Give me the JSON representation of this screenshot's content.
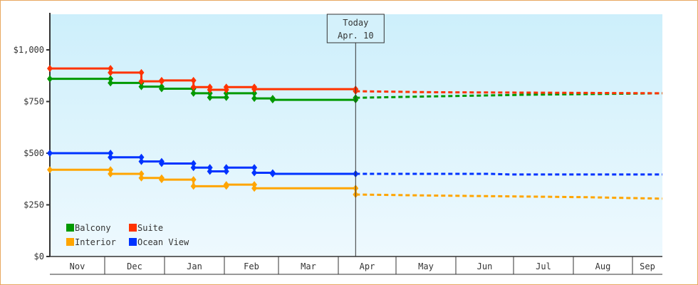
{
  "chart_data": {
    "type": "line",
    "title": "",
    "xlabel": "",
    "ylabel": "",
    "ylim": [
      0,
      1150
    ],
    "y_ticks": [
      {
        "value": 0,
        "label": "$0"
      },
      {
        "value": 250,
        "label": "$250"
      },
      {
        "value": 500,
        "label": "$500"
      },
      {
        "value": 750,
        "label": "$750"
      },
      {
        "value": 1000,
        "label": "$1,000"
      }
    ],
    "x_unit": "days since Nov 1",
    "months": [
      {
        "label": "Nov",
        "start": 0
      },
      {
        "label": "Dec",
        "start": 30
      },
      {
        "label": "Jan",
        "start": 61
      },
      {
        "label": "Feb",
        "start": 92
      },
      {
        "label": "Mar",
        "start": 120
      },
      {
        "label": "Apr",
        "start": 151
      },
      {
        "label": "May",
        "start": 181
      },
      {
        "label": "Jun",
        "start": 212
      },
      {
        "label": "Jul",
        "start": 242
      },
      {
        "label": "Aug",
        "start": 273
      },
      {
        "label": "Sep",
        "start": 304
      }
    ],
    "x_end": 319,
    "today": {
      "day": 160,
      "line1": "Today",
      "line2": "Apr. 10"
    },
    "legend": {
      "placement": "bottom-left"
    },
    "series": [
      {
        "name": "Balcony",
        "color": "#009900",
        "history": [
          [
            0,
            860
          ],
          [
            33,
            840
          ],
          [
            49,
            822
          ],
          [
            59.5,
            812
          ],
          [
            76,
            790
          ],
          [
            84.5,
            770
          ],
          [
            93,
            790
          ],
          [
            107.5,
            765
          ],
          [
            117,
            758
          ],
          [
            160,
            768
          ]
        ],
        "forecast": [
          [
            160,
            768
          ],
          [
            200,
            775
          ],
          [
            250,
            783
          ],
          [
            319,
            790
          ]
        ]
      },
      {
        "name": "Suite",
        "color": "#ff3300",
        "history": [
          [
            0,
            910
          ],
          [
            33,
            890
          ],
          [
            49,
            848
          ],
          [
            59.5,
            852
          ],
          [
            76,
            820
          ],
          [
            84.5,
            807
          ],
          [
            93,
            820
          ],
          [
            107.5,
            810
          ],
          [
            160,
            800
          ]
        ],
        "forecast": [
          [
            160,
            800
          ],
          [
            200,
            795
          ],
          [
            250,
            793
          ],
          [
            319,
            790
          ]
        ]
      },
      {
        "name": "Interior",
        "color": "#ffa500",
        "history": [
          [
            0,
            420
          ],
          [
            33,
            400
          ],
          [
            49,
            380
          ],
          [
            59.5,
            372
          ],
          [
            76,
            340
          ],
          [
            93,
            348
          ],
          [
            107.5,
            330
          ],
          [
            160,
            300
          ]
        ],
        "forecast": [
          [
            160,
            300
          ],
          [
            200,
            295
          ],
          [
            250,
            290
          ],
          [
            280,
            287
          ],
          [
            319,
            280
          ]
        ]
      },
      {
        "name": "Ocean View",
        "color": "#0033ff",
        "history": [
          [
            0,
            500
          ],
          [
            33,
            480
          ],
          [
            49,
            460
          ],
          [
            59.5,
            450
          ],
          [
            76,
            430
          ],
          [
            84.5,
            412
          ],
          [
            93,
            430
          ],
          [
            107.5,
            405
          ],
          [
            117,
            400
          ],
          [
            160,
            400
          ]
        ],
        "forecast": [
          [
            160,
            400
          ],
          [
            230,
            400
          ],
          [
            240,
            397
          ],
          [
            319,
            397
          ]
        ]
      }
    ]
  }
}
